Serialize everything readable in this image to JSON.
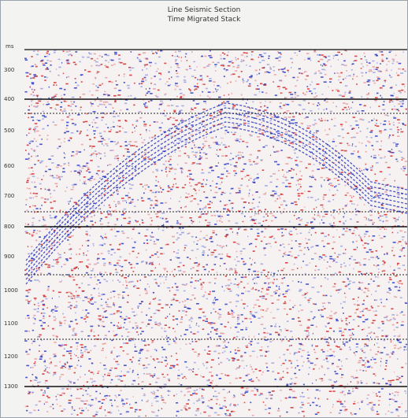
{
  "header": {
    "title": "Line Seismic Section",
    "subtitle": "Time Migrated Stack"
  },
  "axis": {
    "unit": "ms",
    "labels": [
      "300",
      "400",
      "500",
      "600",
      "700",
      "800",
      "900",
      "1000",
      "1100",
      "1200",
      "1300"
    ]
  }
}
